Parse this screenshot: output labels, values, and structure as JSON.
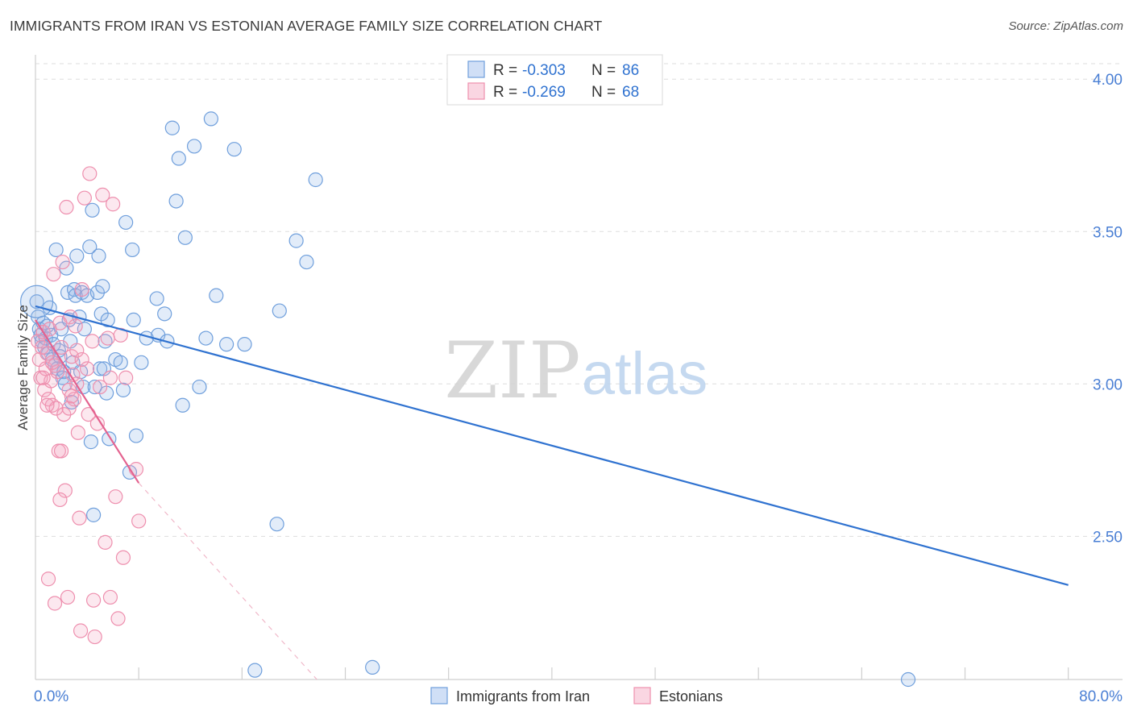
{
  "header": {
    "title": "IMMIGRANTS FROM IRAN VS ESTONIAN AVERAGE FAMILY SIZE CORRELATION CHART",
    "source": "Source: ZipAtlas.com"
  },
  "watermark": {
    "zip": "ZIP",
    "atlas": "atlas"
  },
  "colors": {
    "blue": "#6f9fdc",
    "blue_fill": "rgba(150,185,235,0.28)",
    "blue_line": "#2f72d0",
    "pink": "#ee8fae",
    "pink_fill": "rgba(245,165,190,0.25)",
    "pink_line": "#e4628f",
    "axis_text": "#4a7fd4",
    "grid": "#dddddd"
  },
  "legend": {
    "rows": [
      {
        "r_label": "R = ",
        "r_value": "-0.303",
        "n_label": "N = ",
        "n_value": "86"
      },
      {
        "r_label": "R = ",
        "r_value": "-0.269",
        "n_label": "N = ",
        "n_value": "68"
      }
    ]
  },
  "chart_data": {
    "type": "scatter",
    "title": "IMMIGRANTS FROM IRAN VS ESTONIAN AVERAGE FAMILY SIZE CORRELATION CHART",
    "xlabel": "",
    "ylabel": "Average Family Size",
    "xlim": [
      0,
      84.2
    ],
    "ylim": [
      2.03,
      4.08
    ],
    "x_tick_labels": [
      {
        "value": 0,
        "label": "0.0%"
      },
      {
        "value": 80,
        "label": "80.0%"
      }
    ],
    "x_minor_ticks": [
      8,
      16,
      24,
      32,
      40,
      48,
      56,
      64,
      72,
      80
    ],
    "y_ticks": [
      {
        "value": 2.5,
        "label": "2.50"
      },
      {
        "value": 3.0,
        "label": "3.00"
      },
      {
        "value": 3.5,
        "label": "3.50"
      },
      {
        "value": 4.0,
        "label": "4.00"
      }
    ],
    "grid": true,
    "legend_position": "bottom",
    "series": [
      {
        "name": "Immigrants from Iran",
        "color": "blue",
        "r": -0.303,
        "n": 86,
        "trend": {
          "x": [
            0,
            80
          ],
          "y": [
            3.255,
            2.34
          ]
        },
        "points": [
          [
            0.1,
            3.27
          ],
          [
            0.2,
            3.22
          ],
          [
            0.3,
            3.18
          ],
          [
            0.4,
            3.16
          ],
          [
            0.5,
            3.14
          ],
          [
            0.6,
            3.2
          ],
          [
            0.7,
            3.12
          ],
          [
            0.8,
            3.15
          ],
          [
            0.9,
            3.19
          ],
          [
            1.0,
            3.1
          ],
          [
            1.1,
            3.25
          ],
          [
            1.2,
            3.16
          ],
          [
            1.3,
            3.08
          ],
          [
            1.4,
            3.13
          ],
          [
            1.5,
            3.06
          ],
          [
            1.6,
            3.44
          ],
          [
            1.7,
            3.05
          ],
          [
            1.8,
            3.11
          ],
          [
            1.9,
            3.09
          ],
          [
            2.0,
            3.18
          ],
          [
            2.1,
            3.02
          ],
          [
            2.2,
            3.04
          ],
          [
            2.3,
            3.0
          ],
          [
            2.4,
            3.38
          ],
          [
            2.5,
            3.3
          ],
          [
            2.6,
            3.21
          ],
          [
            2.7,
            3.14
          ],
          [
            2.8,
            2.94
          ],
          [
            2.9,
            3.07
          ],
          [
            3.0,
            3.31
          ],
          [
            3.1,
            3.29
          ],
          [
            3.2,
            3.42
          ],
          [
            3.4,
            3.22
          ],
          [
            3.5,
            3.04
          ],
          [
            3.6,
            3.3
          ],
          [
            3.7,
            2.99
          ],
          [
            3.8,
            3.18
          ],
          [
            4.0,
            3.29
          ],
          [
            4.2,
            3.45
          ],
          [
            4.3,
            2.81
          ],
          [
            4.4,
            3.57
          ],
          [
            4.5,
            2.57
          ],
          [
            4.6,
            2.99
          ],
          [
            4.8,
            3.3
          ],
          [
            4.9,
            3.42
          ],
          [
            5.0,
            3.05
          ],
          [
            5.1,
            3.23
          ],
          [
            5.2,
            3.32
          ],
          [
            5.3,
            3.05
          ],
          [
            5.4,
            3.14
          ],
          [
            5.5,
            2.97
          ],
          [
            5.6,
            3.21
          ],
          [
            5.7,
            2.82
          ],
          [
            6.2,
            3.08
          ],
          [
            6.6,
            3.07
          ],
          [
            6.8,
            2.98
          ],
          [
            7.0,
            3.53
          ],
          [
            7.3,
            2.71
          ],
          [
            7.5,
            3.44
          ],
          [
            7.6,
            3.21
          ],
          [
            7.8,
            2.83
          ],
          [
            8.2,
            3.07
          ],
          [
            8.6,
            3.15
          ],
          [
            9.4,
            3.28
          ],
          [
            9.5,
            3.16
          ],
          [
            10.0,
            3.23
          ],
          [
            10.2,
            3.14
          ],
          [
            10.6,
            3.84
          ],
          [
            10.9,
            3.6
          ],
          [
            11.1,
            3.74
          ],
          [
            11.4,
            2.93
          ],
          [
            11.6,
            3.48
          ],
          [
            12.3,
            3.78
          ],
          [
            12.7,
            2.99
          ],
          [
            13.2,
            3.15
          ],
          [
            13.6,
            3.87
          ],
          [
            14.0,
            3.29
          ],
          [
            14.8,
            3.13
          ],
          [
            15.4,
            3.77
          ],
          [
            16.2,
            3.13
          ],
          [
            17.0,
            2.06
          ],
          [
            18.7,
            2.54
          ],
          [
            18.9,
            3.24
          ],
          [
            20.2,
            3.47
          ],
          [
            21.0,
            3.4
          ],
          [
            21.7,
            3.67
          ],
          [
            26.1,
            2.07
          ],
          [
            67.6,
            2.03
          ]
        ]
      },
      {
        "name": "Estonians",
        "color": "pink",
        "r": -0.269,
        "n": 68,
        "trend": {
          "x": [
            0,
            8
          ],
          "y": [
            3.21,
            2.675
          ]
        },
        "trend_dashed": {
          "x": [
            8,
            21.8
          ],
          "y": [
            2.675,
            2.03
          ]
        },
        "points": [
          [
            0.2,
            3.14
          ],
          [
            0.3,
            3.08
          ],
          [
            0.4,
            3.02
          ],
          [
            0.5,
            3.12
          ],
          [
            0.6,
            3.17
          ],
          [
            0.7,
            2.98
          ],
          [
            0.8,
            3.05
          ],
          [
            0.9,
            3.1
          ],
          [
            1.0,
            2.95
          ],
          [
            1.1,
            3.18
          ],
          [
            1.2,
            3.01
          ],
          [
            1.3,
            2.93
          ],
          [
            1.4,
            3.36
          ],
          [
            1.5,
            3.06
          ],
          [
            1.6,
            2.92
          ],
          [
            1.7,
            3.04
          ],
          [
            1.8,
            2.78
          ],
          [
            1.9,
            3.2
          ],
          [
            2.0,
            3.12
          ],
          [
            2.1,
            3.4
          ],
          [
            2.2,
            2.9
          ],
          [
            2.3,
            2.65
          ],
          [
            2.4,
            3.58
          ],
          [
            2.5,
            2.3
          ],
          [
            2.6,
            2.98
          ],
          [
            2.7,
            3.22
          ],
          [
            2.8,
            3.09
          ],
          [
            2.9,
            3.03
          ],
          [
            3.0,
            2.95
          ],
          [
            3.1,
            3.19
          ],
          [
            3.2,
            3.0
          ],
          [
            3.3,
            2.84
          ],
          [
            3.4,
            2.56
          ],
          [
            3.5,
            2.19
          ],
          [
            3.6,
            3.31
          ],
          [
            3.8,
            3.61
          ],
          [
            4.0,
            3.05
          ],
          [
            4.1,
            2.9
          ],
          [
            4.2,
            3.69
          ],
          [
            4.4,
            3.14
          ],
          [
            4.6,
            2.17
          ],
          [
            4.8,
            2.87
          ],
          [
            5.0,
            2.99
          ],
          [
            5.2,
            3.62
          ],
          [
            5.4,
            2.48
          ],
          [
            5.6,
            3.15
          ],
          [
            5.8,
            2.3
          ],
          [
            6.0,
            3.59
          ],
          [
            6.2,
            2.63
          ],
          [
            6.4,
            2.23
          ],
          [
            6.6,
            3.16
          ],
          [
            6.8,
            2.43
          ],
          [
            7.0,
            3.02
          ],
          [
            7.8,
            2.72
          ],
          [
            8.0,
            2.55
          ],
          [
            0.6,
            3.02
          ],
          [
            1.0,
            2.36
          ],
          [
            1.5,
            2.28
          ],
          [
            2.0,
            2.78
          ],
          [
            2.6,
            2.92
          ],
          [
            3.2,
            3.11
          ],
          [
            1.9,
            2.62
          ],
          [
            4.5,
            2.29
          ],
          [
            1.3,
            3.07
          ],
          [
            0.9,
            2.93
          ],
          [
            2.8,
            2.96
          ],
          [
            3.6,
            3.08
          ],
          [
            5.8,
            3.02
          ]
        ]
      }
    ]
  }
}
